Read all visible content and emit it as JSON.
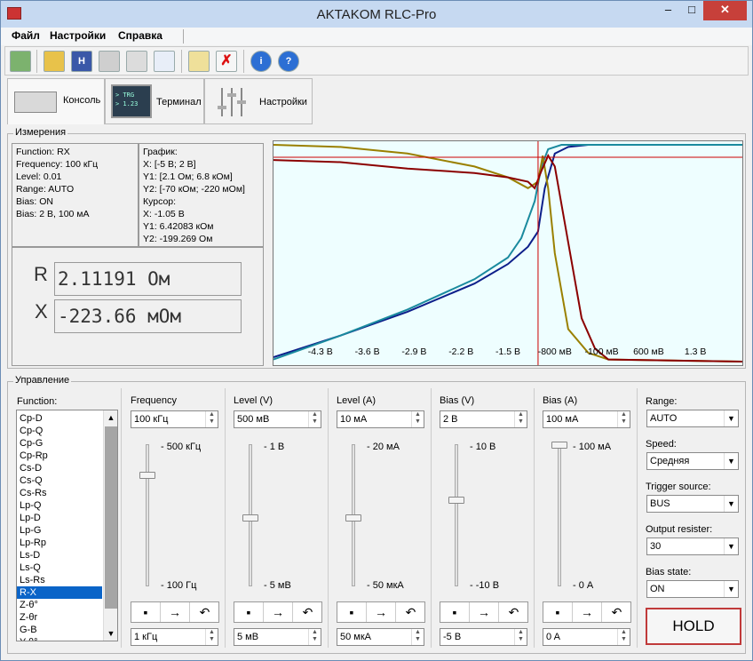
{
  "window": {
    "title": "AKTAKOM RLC-Pro"
  },
  "menu": [
    "Файл",
    "Настройки",
    "Справка"
  ],
  "tabs": [
    {
      "label": "Консоль"
    },
    {
      "label": "Терминал",
      "icon_text": [
        "> TRG",
        "> 1.23"
      ]
    },
    {
      "label": "Настройки"
    }
  ],
  "measurements": {
    "title": "Измерения",
    "info": [
      "Function: RX",
      "Frequency: 100 кГц",
      "Level: 0.01",
      "Range: AUTO",
      "Bias: ON",
      "Bias: 2 В, 100 мА"
    ],
    "graph": [
      "График:",
      "X: [-5 В; 2 В]",
      "Y1: [2.1 Ом; 6.8 кОм]",
      "Y2: [-70 кОм; -220 мОм]",
      "Курсор:",
      "X: -1.05 В",
      "Y1: 6.42083 кОм",
      "Y2: -199.269 Ом"
    ],
    "r_label": "R",
    "r_value": "2.11191  Ом",
    "x_label": "X",
    "x_value": "-223.66  мОм"
  },
  "chart_data": {
    "type": "line",
    "x_ticks": [
      "-4.3 В",
      "-3.6 В",
      "-2.9 В",
      "-2.2 В",
      "-1.5 В",
      "-800 мВ",
      "-100 мВ",
      "600 мВ",
      "1.3 В"
    ],
    "x_tick_values": [
      -4.3,
      -3.6,
      -2.9,
      -2.2,
      -1.5,
      -0.8,
      -0.1,
      0.6,
      1.3
    ],
    "xlim": [
      -5.0,
      2.0
    ],
    "cursor_x": -1.05,
    "series": [
      {
        "color": "#0d1f8a",
        "x": [
          -5.0,
          -4.0,
          -3.0,
          -2.0,
          -1.5,
          -1.2,
          -1.05,
          -0.95,
          -0.8,
          -0.6,
          -0.3,
          0.0,
          2.0
        ],
        "y": [
          0.02,
          0.12,
          0.23,
          0.36,
          0.45,
          0.53,
          0.6,
          0.8,
          0.96,
          0.99,
          1.0,
          1.0,
          1.0
        ]
      },
      {
        "color": "#1a8a9e",
        "x": [
          -5.0,
          -4.0,
          -3.0,
          -2.0,
          -1.5,
          -1.3,
          -1.1,
          -1.0,
          -0.9,
          -0.7,
          -0.3,
          0.0,
          2.0
        ],
        "y": [
          0.01,
          0.12,
          0.24,
          0.38,
          0.48,
          0.57,
          0.74,
          0.9,
          0.98,
          1.0,
          1.0,
          1.0,
          1.0
        ]
      },
      {
        "color": "#9a8000",
        "x": [
          -5.0,
          -4.0,
          -3.0,
          -2.0,
          -1.5,
          -1.2,
          -1.05,
          -0.98,
          -0.9,
          -0.8,
          -0.6,
          -0.3,
          0.0,
          2.0
        ],
        "y": [
          1.0,
          0.99,
          0.96,
          0.9,
          0.85,
          0.8,
          0.83,
          0.95,
          0.8,
          0.5,
          0.15,
          0.04,
          0.01,
          0.0
        ]
      },
      {
        "color": "#8b0000",
        "x": [
          -5.0,
          -4.0,
          -3.0,
          -2.0,
          -1.5,
          -1.2,
          -1.1,
          -1.0,
          -0.9,
          -0.8,
          -0.6,
          -0.4,
          -0.2,
          0.0,
          2.0
        ],
        "y": [
          0.93,
          0.92,
          0.89,
          0.87,
          0.85,
          0.83,
          0.8,
          0.88,
          0.95,
          0.9,
          0.55,
          0.2,
          0.06,
          0.01,
          0.0
        ]
      }
    ]
  },
  "control": {
    "title": "Управление",
    "function_label": "Function:",
    "functions": [
      "Cp-D",
      "Cp-Q",
      "Cp-G",
      "Cp-Rp",
      "Cs-D",
      "Cs-Q",
      "Cs-Rs",
      "Lp-Q",
      "Lp-D",
      "Lp-G",
      "Lp-Rp",
      "Ls-D",
      "Ls-Q",
      "Ls-Rs",
      "R-X",
      "Z-θ°",
      "Z-θr",
      "G-B",
      "Y-θ°"
    ],
    "selected_function": "R-X",
    "columns": [
      {
        "label": "Frequency",
        "value": "100 кГц",
        "max": "500 кГц",
        "min": "100 Гц",
        "level": 0.78,
        "step": "1 кГц"
      },
      {
        "label": "Level (V)",
        "value": "500 мВ",
        "max": "1 В",
        "min": "5 мВ",
        "level": 0.47,
        "step": "5 мВ"
      },
      {
        "label": "Level (A)",
        "value": "10 мА",
        "max": "20 мА",
        "min": "50 мкА",
        "level": 0.47,
        "step": "50 мкА"
      },
      {
        "label": "Bias (V)",
        "value": "2 В",
        "max": "10 В",
        "min": "-10 В",
        "level": 0.6,
        "step": "-5 В"
      },
      {
        "label": "Bias (A)",
        "value": "100 мА",
        "max": "100 мА",
        "min": "0 А",
        "level": 1.0,
        "step": "0 A"
      }
    ],
    "right": [
      {
        "label": "Range:",
        "value": "AUTO"
      },
      {
        "label": "Speed:",
        "value": "Средняя"
      },
      {
        "label": "Trigger source:",
        "value": "BUS"
      },
      {
        "label": "Output resister:",
        "value": "30"
      },
      {
        "label": "Bias state:",
        "value": "ON"
      }
    ],
    "hold_label": "HOLD"
  }
}
